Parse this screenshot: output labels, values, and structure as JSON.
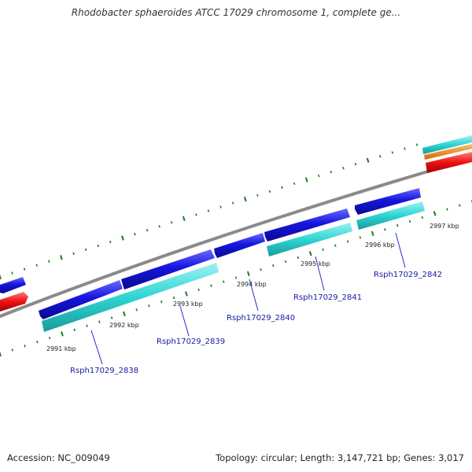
{
  "title": "Rhodobacter sphaeroides ATCC 17029 chromosome 1, complete ge...",
  "footer": {
    "accession": "Accession: NC_009049",
    "summary": "Topology: circular; Length: 3,147,721 bp; Genes: 3,017"
  },
  "ticks": [
    "2991 kbp",
    "2992 kbp",
    "2993 kbp",
    "2994 kbp",
    "2995 kbp",
    "2996 kbp",
    "2997 kbp"
  ],
  "genes": [
    "Rsph17029_2838",
    "Rsph17029_2839",
    "Rsph17029_2840",
    "Rsph17029_2841",
    "Rsph17029_2842"
  ],
  "colors": {
    "cds_forward": "#1515e0",
    "gene_track": "#2ed4d4",
    "backbone": "#888888",
    "tick": "#1a7a1a",
    "red_feature": "#ee1111",
    "orange_feature": "#f08c1a",
    "label_text": "#1a1aa6"
  }
}
